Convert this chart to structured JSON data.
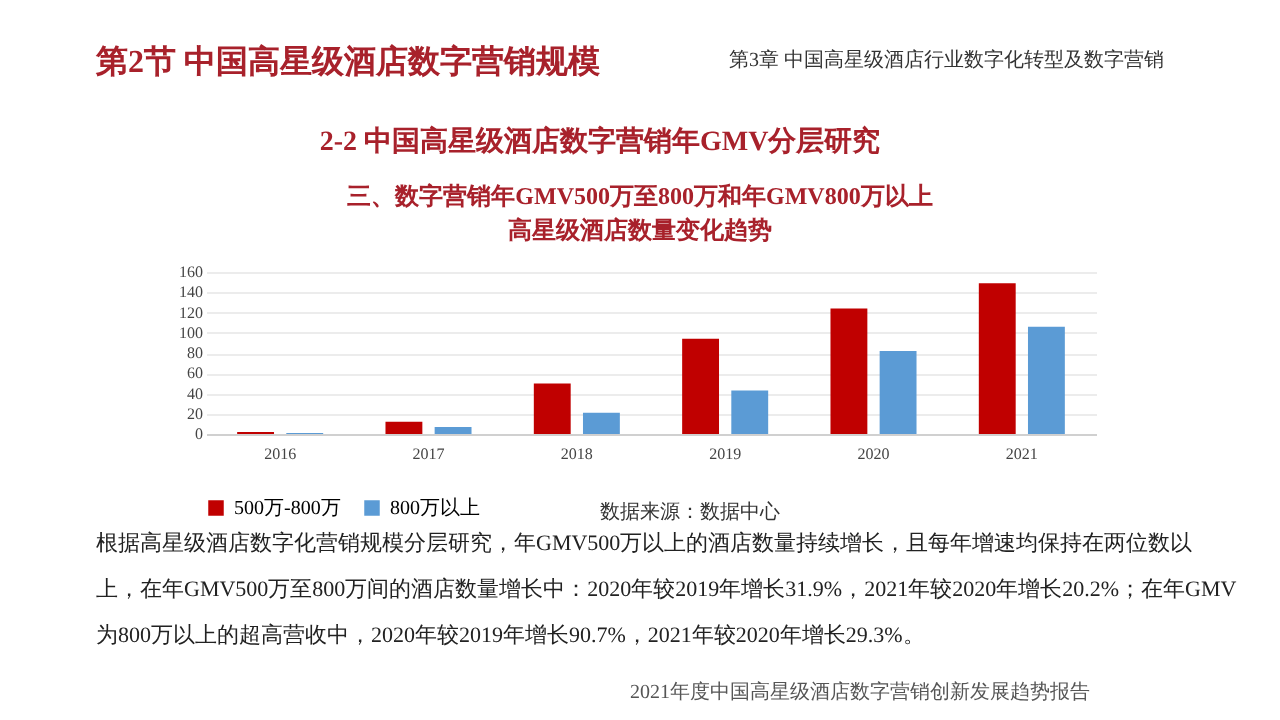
{
  "chart_data": {
    "type": "bar",
    "title": "三、数字营销年GMV500万至800万和年GMV800万以上",
    "subtitle": "高星级酒店数量变化趋势",
    "categories": [
      "2016",
      "2017",
      "2018",
      "2019",
      "2020",
      "2021"
    ],
    "series": [
      {
        "name": "500万-800万",
        "color": "#c00000",
        "values": [
          2,
          12,
          50,
          94,
          124,
          149
        ]
      },
      {
        "name": "800万以上",
        "color": "#5b9bd5",
        "values": [
          1,
          7,
          21,
          43,
          82,
          106
        ]
      }
    ],
    "ylim": [
      0,
      160
    ],
    "yticks": [
      0,
      20,
      40,
      60,
      80,
      100,
      120,
      140,
      160
    ],
    "grid": "y",
    "legend": "bottom",
    "annotations": [
      "第2节 中国高星级酒店数字营销规模",
      "第3章 中国高星级酒店行业数字化转型及数字营销",
      "2-2 中国高星级酒店数字营销年GMV分层研究",
      "数据来源：数据中心",
      "根据高星级酒店数字化营销规模分层研究，年GMV500万以上的酒店数量持续增长，且每年增速均保持在两位数以",
      "上，在年GMV500万至800万间的酒店数量增长中：2020年较2019年增长31.9%，2021年较2020年增长20.2%；在年GMV",
      "为800万以上的超高营收中，2020年较2019年增长90.7%，2021年较2020年增长29.3%。",
      "2021年度中国高星级酒店数字营销创新发展趋势报告"
    ]
  }
}
